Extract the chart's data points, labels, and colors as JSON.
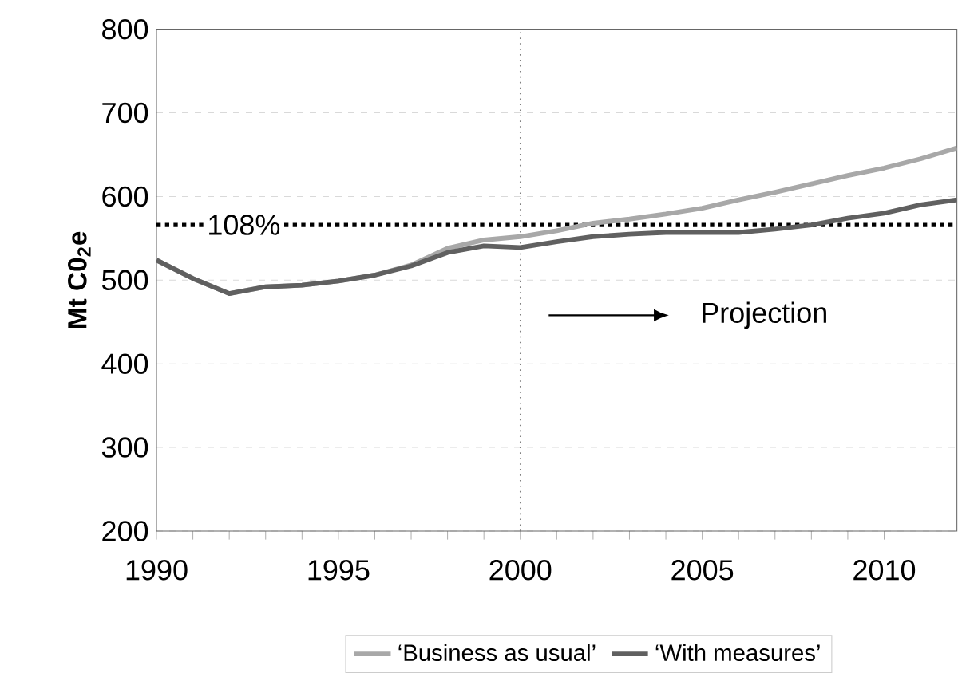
{
  "chart_data": {
    "type": "line",
    "ylabel": "Mt C0$_{2}$e",
    "x": [
      1990,
      1991,
      1992,
      1993,
      1994,
      1995,
      1996,
      1997,
      1998,
      1999,
      2000,
      2001,
      2002,
      2003,
      2004,
      2005,
      2006,
      2007,
      2008,
      2009,
      2010,
      2011,
      2012
    ],
    "series": [
      {
        "name": "‘Business as usual’",
        "color": "#a8a8a8",
        "values": [
          524,
          502,
          484,
          492,
          494,
          499,
          506,
          518,
          538,
          548,
          552,
          559,
          568,
          573,
          579,
          586,
          596,
          605,
          615,
          625,
          634,
          645,
          658
        ]
      },
      {
        "name": "‘With measures’",
        "color": "#606060",
        "values": [
          524,
          502,
          484,
          492,
          494,
          499,
          506,
          517,
          533,
          541,
          539,
          546,
          552,
          555,
          557,
          557,
          557,
          561,
          566,
          574,
          580,
          590,
          596
        ]
      }
    ],
    "xlim": [
      1990,
      2012
    ],
    "xticks": [
      1990,
      1995,
      2000,
      2005,
      2010
    ],
    "ylim": [
      200,
      800
    ],
    "yticks": [
      200,
      300,
      400,
      500,
      600,
      700,
      800
    ],
    "grid": "y",
    "legend": "bottom",
    "line_style": "solid",
    "marker": "none",
    "ref_lines": [
      {
        "axis": "y",
        "value": 566,
        "color": "#000000",
        "line_style": "dotted"
      },
      {
        "axis": "x",
        "value": 2000,
        "color": "#808080",
        "line_style": "dotted"
      }
    ],
    "annotations": [
      {
        "text": "108%",
        "x": 1992.4,
        "y": 566
      },
      "Projection"
    ]
  }
}
